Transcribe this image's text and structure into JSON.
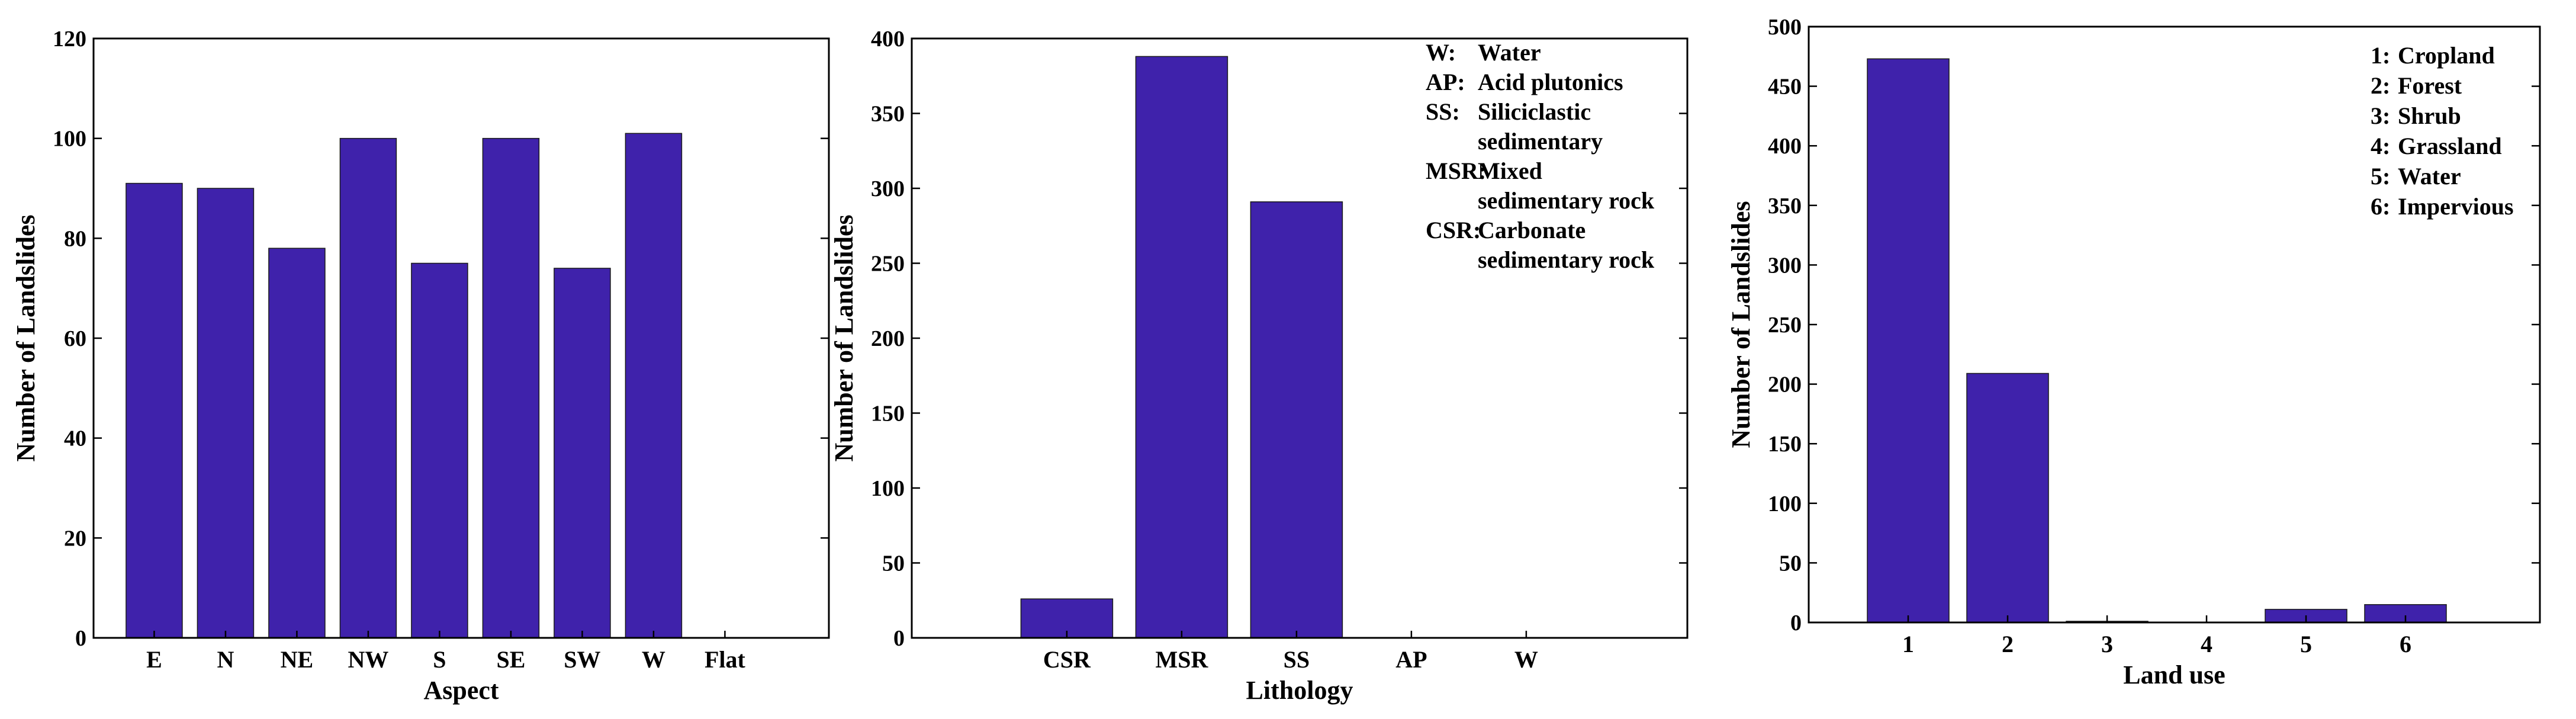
{
  "bar_color": "#3f22ab",
  "chart_data": [
    {
      "type": "bar",
      "title": "",
      "xlabel": "Aspect",
      "ylabel": "Number of Landslides",
      "ylim": [
        0,
        120
      ],
      "yticks": [
        0,
        20,
        40,
        60,
        80,
        100,
        120
      ],
      "categories": [
        "E",
        "N",
        "NE",
        "NW",
        "S",
        "SE",
        "SW",
        "W",
        "Flat"
      ],
      "values": [
        91,
        90,
        78,
        100,
        75,
        100,
        74,
        101,
        0
      ],
      "legend": []
    },
    {
      "type": "bar",
      "title": "",
      "xlabel": "Lithology",
      "ylabel": "Number of Landslides",
      "ylim": [
        0,
        400
      ],
      "yticks": [
        0,
        50,
        100,
        150,
        200,
        250,
        300,
        350,
        400
      ],
      "categories": [
        "CSR",
        "MSR",
        "SS",
        "AP",
        "W"
      ],
      "values": [
        26,
        388,
        291,
        0,
        0
      ],
      "legend": [
        {
          "key": "W:",
          "lines": [
            "Water"
          ]
        },
        {
          "key": "AP:",
          "lines": [
            "Acid plutonics"
          ]
        },
        {
          "key": "SS:",
          "lines": [
            "Siliciclastic",
            "sedimentary"
          ]
        },
        {
          "key": "MSR:",
          "lines": [
            "Mixed",
            "sedimentary rock"
          ]
        },
        {
          "key": "CSR:",
          "lines": [
            "Carbonate",
            "sedimentary rock"
          ]
        }
      ]
    },
    {
      "type": "bar",
      "title": "",
      "xlabel": "Land use",
      "ylabel": "Number of Landslides",
      "ylim": [
        0,
        500
      ],
      "yticks": [
        0,
        50,
        100,
        150,
        200,
        250,
        300,
        350,
        400,
        450,
        500
      ],
      "categories": [
        "1",
        "2",
        "3",
        "4",
        "5",
        "6"
      ],
      "values": [
        473,
        209,
        1,
        0,
        11,
        15
      ],
      "legend": [
        {
          "key": "1:",
          "lines": [
            "Cropland"
          ]
        },
        {
          "key": "2:",
          "lines": [
            "Forest"
          ]
        },
        {
          "key": "3:",
          "lines": [
            "Shrub"
          ]
        },
        {
          "key": "4:",
          "lines": [
            "Grassland"
          ]
        },
        {
          "key": "5:",
          "lines": [
            "Water"
          ]
        },
        {
          "key": "6:",
          "lines": [
            "Impervious"
          ]
        }
      ]
    }
  ]
}
